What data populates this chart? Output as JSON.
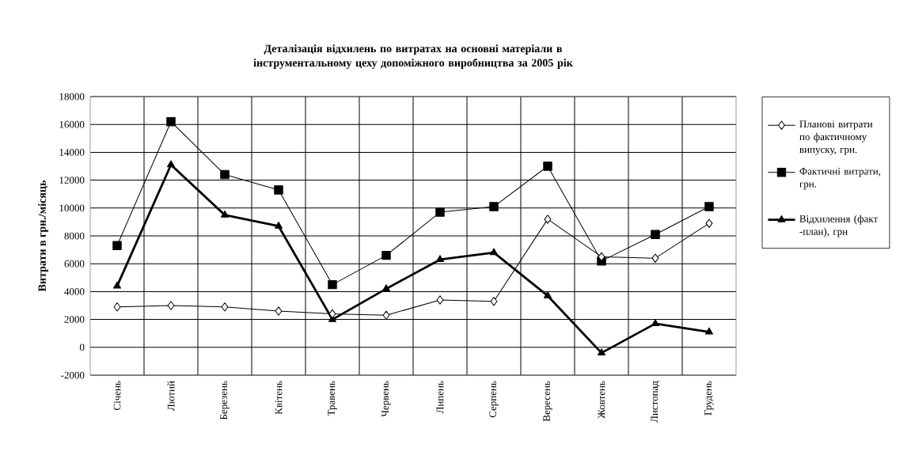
{
  "chart_data": {
    "type": "line",
    "title": "Деталізація відхилень по витратах на основні матеріали в інструментальному цеху допоміжного виробництва за 2005 рік",
    "ylabel": "Витрати в грн./місяць",
    "categories": [
      "Січень",
      "Лютий",
      "Березень",
      "Квітень",
      "Травень",
      "Червень",
      "Липень",
      "Серпень",
      "Вересень",
      "Жовтень",
      "Листопад",
      "Грудень"
    ],
    "series": [
      {
        "name": "Планові витрати по фактичному випуску, грн.",
        "color": "#000000",
        "marker": "diamond",
        "values": [
          2900,
          3000,
          2900,
          2600,
          2400,
          2300,
          3400,
          3300,
          9200,
          6500,
          6400,
          8900
        ]
      },
      {
        "name": "Фактичні витрати, грн.",
        "color": "#000000",
        "marker": "square",
        "values": [
          7300,
          16200,
          12400,
          11300,
          4500,
          6600,
          9700,
          10100,
          13000,
          6200,
          8100,
          10100
        ]
      },
      {
        "name": "Відхилення (факт -план), грн",
        "color": "#000000",
        "marker": "triangle",
        "values": [
          4400,
          13100,
          9500,
          8700,
          2000,
          4200,
          6300,
          6800,
          3700,
          -400,
          1700,
          1100
        ]
      }
    ],
    "ylim": [
      -2000,
      18000
    ],
    "yticks": [
      -2000,
      0,
      2000,
      4000,
      6000,
      8000,
      10000,
      12000,
      14000,
      16000,
      18000
    ],
    "grid": true,
    "legend": "right",
    "line_style": "solid"
  }
}
